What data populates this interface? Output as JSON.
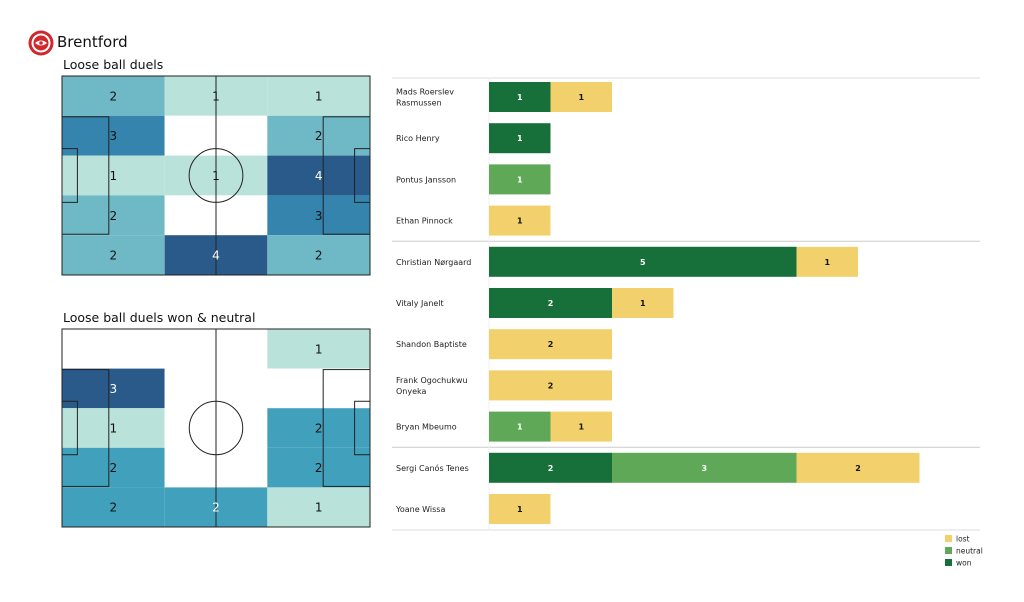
{
  "team": {
    "name": "Brentford",
    "logo": "brentford-crest-icon"
  },
  "chart_data": [
    {
      "type": "heatmap",
      "title": "Loose ball duels",
      "rows": 5,
      "cols": 3,
      "values": [
        [
          2,
          1,
          1
        ],
        [
          3,
          0,
          2
        ],
        [
          1,
          1,
          4
        ],
        [
          2,
          0,
          3
        ],
        [
          2,
          4,
          2
        ]
      ]
    },
    {
      "type": "heatmap",
      "title": "Loose ball duels won & neutral",
      "rows": 5,
      "cols": 3,
      "values": [
        [
          0,
          0,
          1
        ],
        [
          3,
          0,
          0
        ],
        [
          1,
          0,
          2
        ],
        [
          2,
          0,
          2
        ],
        [
          2,
          2,
          1
        ]
      ]
    },
    {
      "type": "bar",
      "orientation": "horizontal",
      "stacked": true,
      "categories": [
        "Mads Roerslev Rasmussen",
        "Rico Henry",
        "Pontus Jansson",
        "Ethan Pinnock",
        "Christian Nørgaard",
        "Vitaly Janelt",
        "Shandon Baptiste",
        "Frank Ogochukwu Onyeka",
        "Bryan Mbeumo",
        "Sergi Canós Tenes",
        "Yoane Wissa"
      ],
      "category_lines": [
        [
          "Mads Roerslev",
          "Rasmussen"
        ],
        [
          "Rico Henry"
        ],
        [
          "Pontus Jansson"
        ],
        [
          "Ethan Pinnock"
        ],
        [
          "Christian Nørgaard"
        ],
        [
          "Vitaly Janelt"
        ],
        [
          "Shandon Baptiste"
        ],
        [
          "Frank Ogochukwu",
          "Onyeka"
        ],
        [
          "Bryan Mbeumo"
        ],
        [
          "Sergi Canós Tenes"
        ],
        [
          "Yoane Wissa"
        ]
      ],
      "series": [
        {
          "name": "won",
          "color": "#17703a",
          "values": [
            1,
            1,
            0,
            0,
            5,
            2,
            0,
            0,
            0,
            2,
            0
          ]
        },
        {
          "name": "neutral",
          "color": "#5fa858",
          "values": [
            0,
            0,
            1,
            0,
            0,
            0,
            0,
            0,
            1,
            3,
            0
          ]
        },
        {
          "name": "lost",
          "color": "#f2d06b",
          "values": [
            1,
            0,
            0,
            1,
            1,
            1,
            2,
            2,
            1,
            2,
            1
          ]
        }
      ],
      "group_separators_after": [
        3,
        8
      ],
      "legend": {
        "position": "bottom-right",
        "order": [
          "lost",
          "neutral",
          "won"
        ]
      }
    }
  ]
}
